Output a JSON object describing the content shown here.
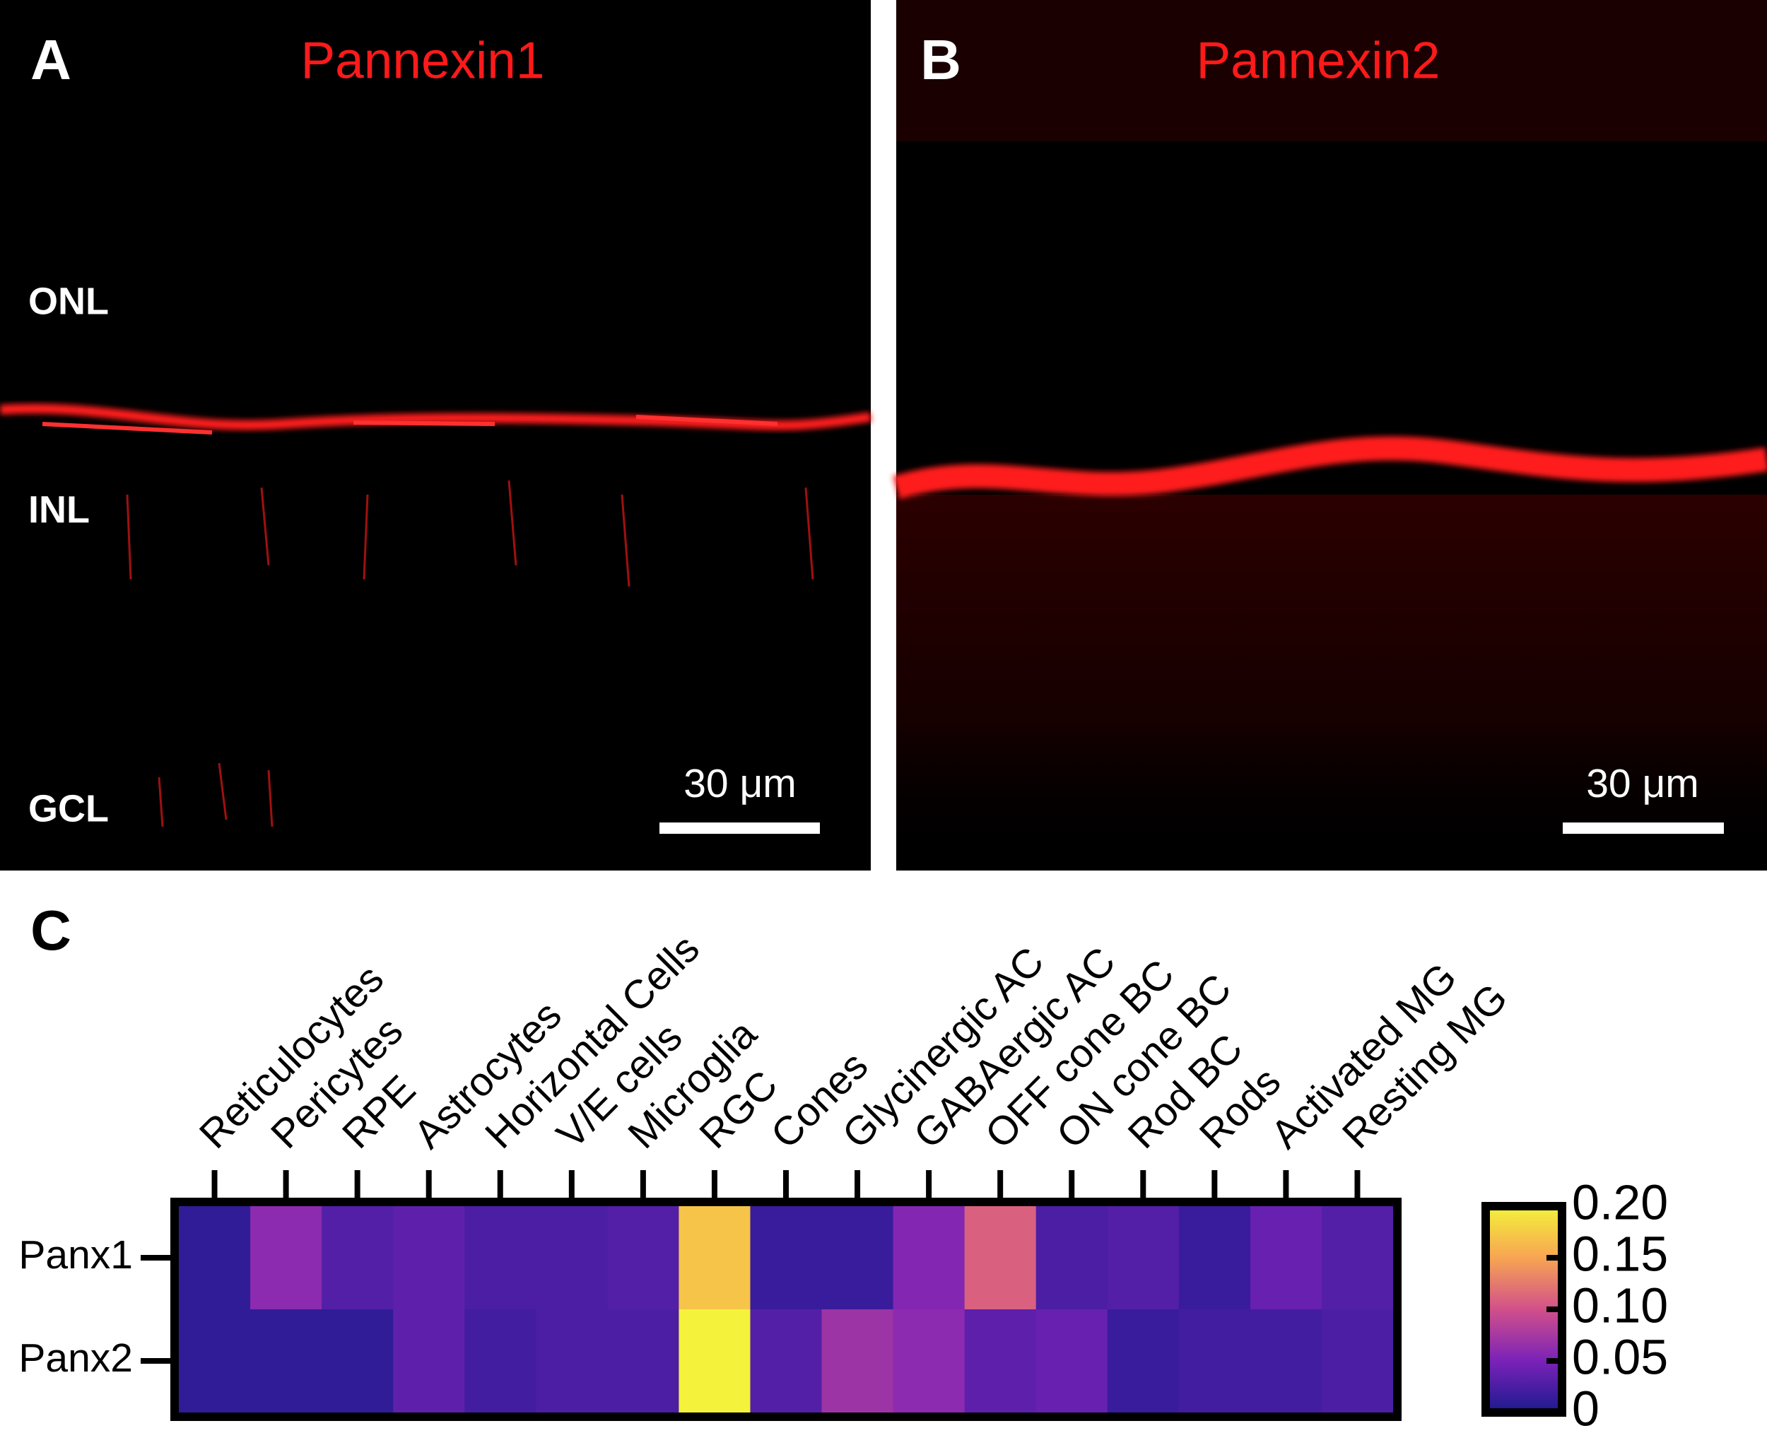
{
  "panels": [
    {
      "letter": "A",
      "title": "Pannexin1",
      "layers": [
        "ONL",
        "INL",
        "GCL"
      ],
      "scale_bar": "30 μm"
    },
    {
      "letter": "B",
      "title": "Pannexin2",
      "scale_bar": "30 μm"
    }
  ],
  "chart_data": {
    "type": "heatmap",
    "letter": "C",
    "categories": [
      "Reticulocytes",
      "Pericytes",
      "RPE",
      "Astrocytes",
      "Horizontal Cells",
      "V/E cells",
      "Microglia",
      "RGC",
      "Cones",
      "Glycinergic AC",
      "GABAergic AC",
      "OFF cone BC",
      "ON cone BC",
      "Rod BC",
      "Rods",
      "Activated MG",
      "Resting MG"
    ],
    "series": [
      {
        "name": "Panx1",
        "values": [
          0.01,
          0.06,
          0.03,
          0.035,
          0.025,
          0.025,
          0.03,
          0.17,
          0.015,
          0.015,
          0.055,
          0.11,
          0.025,
          0.03,
          0.015,
          0.04,
          0.03
        ]
      },
      {
        "name": "Panx2",
        "values": [
          0.01,
          0.01,
          0.01,
          0.035,
          0.02,
          0.025,
          0.025,
          0.2,
          0.03,
          0.07,
          0.06,
          0.035,
          0.04,
          0.015,
          0.02,
          0.02,
          0.025
        ]
      }
    ],
    "zlim": [
      0,
      0.2
    ],
    "zticks": [
      0,
      0.05,
      {
        "value": 0.1,
        "label": "0.10"
      },
      0.15,
      {
        "value": 0.2,
        "label": "0.20"
      }
    ],
    "colorscale": [
      "#1c1a8e",
      "#7a22b8",
      "#d2508a",
      "#f7a552",
      "#f4f23a"
    ]
  }
}
